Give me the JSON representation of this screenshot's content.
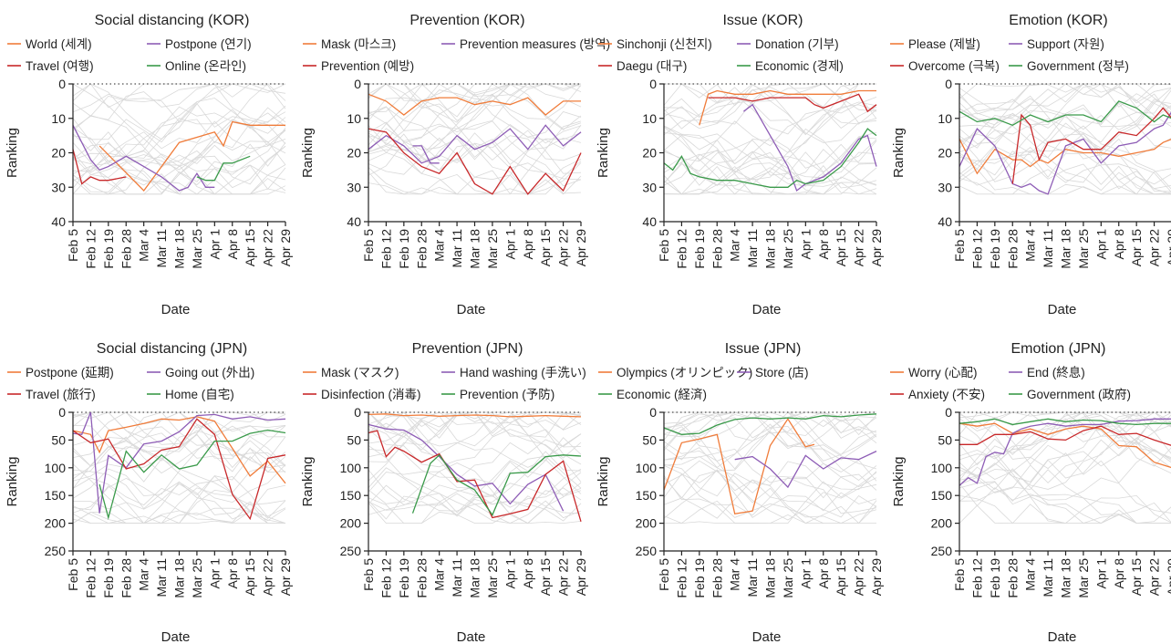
{
  "dates": [
    "Feb 5",
    "Feb 12",
    "Feb 19",
    "Feb 28",
    "Mar 4",
    "Mar 11",
    "Mar 18",
    "Mar 25",
    "Apr 1",
    "Apr 8",
    "Apr 15",
    "Apr 22",
    "Apr 29"
  ],
  "axis_text": {
    "xlabel": "Date",
    "ylabel": "Ranking"
  },
  "colors": {
    "orange": "#f07c3a",
    "purple": "#8e5db6",
    "red": "#c8282a",
    "green": "#3a9a4a",
    "background_lines": "#d9d9d9"
  },
  "chart_data": [
    {
      "type": "line",
      "title": "Social distancing (KOR)",
      "xlabel": "Date",
      "ylabel": "Ranking",
      "ylim": [
        40,
        0
      ],
      "yticks": [
        0,
        10,
        20,
        30,
        40
      ],
      "y_reversed": true,
      "grid": false,
      "legend_placement": "top",
      "series": [
        {
          "name": "World (세계)",
          "color": "orange",
          "x": [
            1.5,
            4,
            6,
            8,
            8.5,
            9,
            10,
            12
          ],
          "y": [
            18,
            31,
            17,
            14,
            18,
            11,
            12,
            12
          ]
        },
        {
          "name": "Postpone (연기)",
          "color": "purple",
          "x": [
            0,
            1,
            1.5,
            2,
            3,
            4,
            5,
            6,
            6.5,
            7,
            7.5,
            8
          ],
          "y": [
            12,
            22,
            25,
            24,
            21,
            24,
            27,
            31,
            30,
            26,
            30,
            30
          ]
        },
        {
          "name": "Travel (여행)",
          "color": "red",
          "x": [
            0,
            0.5,
            1,
            1.5,
            2,
            3
          ],
          "y": [
            19,
            29,
            27,
            28,
            28,
            27
          ]
        },
        {
          "name": "Online (온라인)",
          "color": "green",
          "x": [
            7,
            7.5,
            8,
            8.5,
            9,
            10
          ],
          "y": [
            27,
            28,
            28,
            23,
            23,
            21
          ]
        }
      ]
    },
    {
      "type": "line",
      "title": "Prevention (KOR)",
      "xlabel": "Date",
      "ylabel": "Ranking",
      "ylim": [
        40,
        0
      ],
      "yticks": [
        0,
        10,
        20,
        30,
        40
      ],
      "y_reversed": true,
      "grid": false,
      "legend_placement": "top",
      "series": [
        {
          "name": "Mask (마스크)",
          "color": "orange",
          "x": [
            0,
            1,
            2,
            3,
            4,
            5,
            6,
            7,
            8,
            9,
            10,
            11,
            12
          ],
          "y": [
            3,
            5,
            9,
            5,
            4,
            4,
            6,
            5,
            6,
            4,
            9,
            5,
            5
          ]
        },
        {
          "name": "Prevention measures (방역)",
          "color": "purple",
          "x": [
            0,
            1,
            2,
            3,
            4,
            5,
            6,
            7,
            8,
            9,
            10,
            11,
            12
          ],
          "y": [
            19,
            15,
            18,
            23,
            21,
            15,
            19,
            17,
            13,
            19,
            12,
            18,
            14
          ]
        },
        {
          "name": "Prevention (예방)",
          "color": "red",
          "x": [
            0,
            1,
            2,
            3,
            4,
            5,
            6,
            7,
            8,
            9,
            10,
            11,
            12
          ],
          "y": [
            13,
            14,
            20,
            24,
            26,
            20,
            29,
            32,
            24,
            32,
            26,
            31,
            20
          ]
        },
        {
          "name": "",
          "color": "purple",
          "x": [
            2.5,
            3,
            3.5,
            4
          ],
          "y": [
            18,
            18,
            23,
            23
          ]
        }
      ]
    },
    {
      "type": "line",
      "title": "Issue (KOR)",
      "xlabel": "Date",
      "ylabel": "Ranking",
      "ylim": [
        40,
        0
      ],
      "yticks": [
        0,
        10,
        20,
        30,
        40
      ],
      "y_reversed": true,
      "grid": false,
      "legend_placement": "top",
      "series": [
        {
          "name": "Sinchonji (신천지)",
          "color": "orange",
          "x": [
            2,
            2.5,
            3,
            4,
            5,
            6,
            7,
            8,
            9,
            10,
            11,
            12
          ],
          "y": [
            12,
            3,
            2,
            3,
            3,
            2,
            3,
            3,
            3,
            3,
            2,
            2
          ]
        },
        {
          "name": "Donation (기부)",
          "color": "purple",
          "x": [
            4.5,
            5,
            6,
            7,
            7.5,
            8,
            9,
            10,
            11,
            11.5,
            12
          ],
          "y": [
            8,
            6,
            15,
            24,
            31,
            29,
            27,
            23,
            16,
            15,
            24
          ]
        },
        {
          "name": "Daegu (대구)",
          "color": "red",
          "x": [
            2.5,
            3,
            4,
            5,
            6,
            7,
            8,
            8.5,
            9,
            10,
            11,
            11.5,
            12
          ],
          "y": [
            4,
            4,
            4,
            5,
            4,
            4,
            4,
            6,
            7,
            5,
            3,
            8,
            6
          ]
        },
        {
          "name": "Economic (경제)",
          "color": "green",
          "x": [
            0,
            0.5,
            1,
            1.5,
            2,
            3,
            4,
            5,
            6,
            7,
            7.5,
            8,
            9,
            10,
            11,
            11.5,
            12
          ],
          "y": [
            23,
            25,
            21,
            26,
            27,
            28,
            28,
            29,
            30,
            30,
            28,
            29,
            28,
            24,
            17,
            13,
            15
          ]
        }
      ]
    },
    {
      "type": "line",
      "title": "Emotion (KOR)",
      "xlabel": "Date",
      "ylabel": "Ranking",
      "ylim": [
        40,
        0
      ],
      "yticks": [
        0,
        10,
        20,
        30,
        40
      ],
      "y_reversed": true,
      "grid": false,
      "legend_placement": "top",
      "series": [
        {
          "name": "Please (제발)",
          "color": "orange",
          "x": [
            0,
            1,
            2,
            3,
            3.5,
            4,
            4.5,
            5,
            6,
            7,
            8,
            9,
            10,
            11,
            11.5,
            12
          ],
          "y": [
            16,
            26,
            19,
            22,
            22,
            24,
            22,
            23,
            19,
            20,
            20,
            21,
            20,
            19,
            17,
            16
          ]
        },
        {
          "name": "Support (자원)",
          "color": "purple",
          "x": [
            0,
            1,
            2,
            3,
            3.5,
            4,
            4.5,
            5,
            6,
            7,
            8,
            9,
            10,
            11,
            11.5,
            12
          ],
          "y": [
            24,
            13,
            18,
            29,
            30,
            29,
            31,
            32,
            18,
            16,
            23,
            18,
            17,
            13,
            12,
            8
          ]
        },
        {
          "name": "Overcome (극복)",
          "color": "red",
          "x": [
            3,
            3.5,
            4,
            4.5,
            5,
            6,
            7,
            8,
            9,
            10,
            11,
            11.5,
            12
          ],
          "y": [
            29,
            9,
            12,
            22,
            17,
            16,
            19,
            19,
            14,
            15,
            10,
            7,
            10
          ]
        },
        {
          "name": "Government (정부)",
          "color": "green",
          "x": [
            0,
            1,
            2,
            3,
            4,
            5,
            6,
            7,
            8,
            9,
            10,
            11,
            11.5,
            12
          ],
          "y": [
            8,
            11,
            10,
            12,
            9,
            11,
            9,
            9,
            11,
            5,
            7,
            11,
            9,
            10
          ]
        }
      ]
    },
    {
      "type": "line",
      "title": "Social distancing (JPN)",
      "xlabel": "Date",
      "ylabel": "Ranking",
      "ylim": [
        250,
        0
      ],
      "yticks": [
        0,
        50,
        100,
        150,
        200,
        250
      ],
      "y_reversed": true,
      "grid": false,
      "legend_placement": "top",
      "series": [
        {
          "name": "Postpone (延期)",
          "color": "orange",
          "x": [
            0,
            1,
            1.5,
            2,
            3,
            4,
            5,
            6,
            7,
            8,
            9,
            10,
            11,
            12
          ],
          "y": [
            33,
            40,
            72,
            33,
            27,
            20,
            12,
            14,
            8,
            16,
            65,
            115,
            88,
            128
          ]
        },
        {
          "name": "Going out (外出)",
          "color": "purple",
          "x": [
            0,
            0.5,
            1,
            1.5,
            2,
            3,
            4,
            5,
            6,
            7,
            8,
            9,
            10,
            11,
            12
          ],
          "y": [
            38,
            40,
            0,
            182,
            78,
            100,
            57,
            52,
            35,
            6,
            4,
            12,
            8,
            14,
            12
          ]
        },
        {
          "name": "Travel (旅行)",
          "color": "red",
          "x": [
            0,
            1,
            2,
            3,
            4,
            5,
            6,
            7,
            8,
            9,
            10,
            11,
            12
          ],
          "y": [
            33,
            55,
            48,
            102,
            93,
            68,
            62,
            12,
            40,
            148,
            192,
            83,
            77
          ]
        },
        {
          "name": "Home (自宅)",
          "color": "green",
          "x": [
            1.5,
            2,
            3,
            4,
            5,
            6,
            7,
            8,
            9,
            10,
            11,
            12
          ],
          "y": [
            130,
            190,
            70,
            108,
            77,
            102,
            95,
            52,
            52,
            38,
            32,
            37
          ]
        }
      ]
    },
    {
      "type": "line",
      "title": "Prevention (JPN)",
      "xlabel": "Date",
      "ylabel": "Ranking",
      "ylim": [
        250,
        0
      ],
      "yticks": [
        0,
        50,
        100,
        150,
        200,
        250
      ],
      "y_reversed": true,
      "grid": false,
      "legend_placement": "top",
      "series": [
        {
          "name": "Mask (マスク)",
          "color": "orange",
          "x": [
            0,
            1,
            2,
            3,
            4,
            5,
            6,
            7,
            8,
            9,
            10,
            11,
            12
          ],
          "y": [
            4,
            3,
            6,
            5,
            7,
            6,
            5,
            6,
            8,
            7,
            6,
            7,
            8
          ]
        },
        {
          "name": "Hand washing (手洗い)",
          "color": "purple",
          "x": [
            0,
            1,
            2,
            3,
            4,
            5,
            6,
            7,
            8,
            9,
            10,
            11
          ],
          "y": [
            22,
            30,
            32,
            50,
            80,
            112,
            133,
            128,
            165,
            130,
            112,
            178
          ]
        },
        {
          "name": "Disinfection (消毒)",
          "color": "red",
          "x": [
            0,
            0.5,
            1,
            1.5,
            2,
            3,
            4,
            5,
            6,
            7,
            8,
            9,
            10,
            11,
            12
          ],
          "y": [
            37,
            33,
            80,
            63,
            70,
            90,
            75,
            125,
            122,
            190,
            183,
            175,
            112,
            88,
            197
          ]
        },
        {
          "name": "Prevention (予防)",
          "color": "green",
          "x": [
            2.5,
            3.5,
            4,
            5,
            6,
            7,
            8,
            9,
            10,
            11,
            12
          ],
          "y": [
            182,
            92,
            77,
            122,
            140,
            185,
            110,
            108,
            80,
            77,
            79
          ]
        }
      ]
    },
    {
      "type": "line",
      "title": "Issue (JPN)",
      "xlabel": "Date",
      "ylabel": "Ranking",
      "ylim": [
        250,
        0
      ],
      "yticks": [
        0,
        50,
        100,
        150,
        200,
        250
      ],
      "y_reversed": true,
      "grid": false,
      "legend_placement": "top",
      "series": [
        {
          "name": "Olympics (オリンピック)",
          "color": "orange",
          "x": [
            0,
            1,
            2,
            3,
            4,
            5,
            6,
            7,
            8,
            8.5
          ],
          "y": [
            140,
            55,
            48,
            40,
            183,
            178,
            60,
            12,
            62,
            58
          ]
        },
        {
          "name": "Store (店)",
          "color": "purple",
          "x": [
            4,
            5,
            6,
            7,
            8,
            9,
            10,
            11,
            12
          ],
          "y": [
            85,
            80,
            102,
            135,
            78,
            102,
            82,
            85,
            70
          ]
        },
        {
          "name": "Economic (経済)",
          "color": "green",
          "x": [
            0,
            1,
            2,
            3,
            4,
            5,
            6,
            7,
            8,
            9,
            10,
            11,
            12
          ],
          "y": [
            28,
            40,
            38,
            23,
            13,
            10,
            12,
            10,
            12,
            6,
            8,
            5,
            3
          ]
        }
      ]
    },
    {
      "type": "line",
      "title": "Emotion (JPN)",
      "xlabel": "Date",
      "ylabel": "Ranking",
      "ylim": [
        250,
        0
      ],
      "yticks": [
        0,
        50,
        100,
        150,
        200,
        250
      ],
      "y_reversed": true,
      "grid": false,
      "legend_placement": "top",
      "series": [
        {
          "name": "Worry (心配)",
          "color": "orange",
          "x": [
            0,
            1,
            2,
            3,
            4,
            5,
            6,
            7,
            8,
            9,
            10,
            11,
            12
          ],
          "y": [
            20,
            25,
            20,
            38,
            30,
            40,
            30,
            25,
            30,
            60,
            62,
            90,
            100
          ]
        },
        {
          "name": "End (終息)",
          "color": "purple",
          "x": [
            0,
            0.5,
            1,
            1.5,
            2,
            2.5,
            3,
            3.5,
            4,
            5,
            6,
            7,
            8,
            9,
            10,
            11,
            12
          ],
          "y": [
            132,
            118,
            128,
            80,
            72,
            75,
            38,
            30,
            25,
            20,
            25,
            22,
            22,
            16,
            15,
            12,
            12
          ]
        },
        {
          "name": "Anxiety (不安)",
          "color": "red",
          "x": [
            0,
            1,
            2,
            3,
            4,
            5,
            6,
            7,
            8,
            9,
            10,
            11,
            12
          ],
          "y": [
            58,
            58,
            40,
            40,
            35,
            48,
            50,
            33,
            25,
            40,
            38,
            50,
            60
          ]
        },
        {
          "name": "Government (政府)",
          "color": "green",
          "x": [
            0,
            1,
            2,
            3,
            4,
            5,
            6,
            7,
            8,
            9,
            10,
            11,
            12
          ],
          "y": [
            20,
            17,
            12,
            22,
            17,
            12,
            17,
            14,
            15,
            20,
            22,
            20,
            20
          ]
        }
      ]
    }
  ]
}
